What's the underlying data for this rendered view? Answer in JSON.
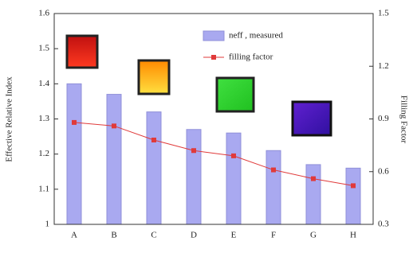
{
  "chart_data": {
    "type": "bar_line",
    "y_label": "Effective Relative Index",
    "y2_label": "Filling Factor",
    "categories": [
      "A",
      "B",
      "C",
      "D",
      "E",
      "F",
      "G",
      "H"
    ],
    "series": [
      {
        "name": "neff , measured",
        "type": "bar",
        "color": "#a9a9f0",
        "values": [
          1.4,
          1.37,
          1.32,
          1.27,
          1.26,
          1.21,
          1.17,
          1.16
        ]
      },
      {
        "name": "filling factor",
        "type": "line",
        "axis": "y2",
        "color": "#e03a3a",
        "values": [
          0.88,
          0.86,
          0.78,
          0.72,
          0.69,
          0.61,
          0.56,
          0.52
        ]
      }
    ],
    "ylim": [
      1,
      1.6
    ],
    "yticks": [
      1,
      1.1,
      1.2,
      1.3,
      1.4,
      1.5,
      1.6
    ],
    "y2lim": [
      0.3,
      1.5
    ],
    "y2ticks": [
      0.3,
      0.6,
      0.9,
      1.2,
      1.5
    ]
  }
}
